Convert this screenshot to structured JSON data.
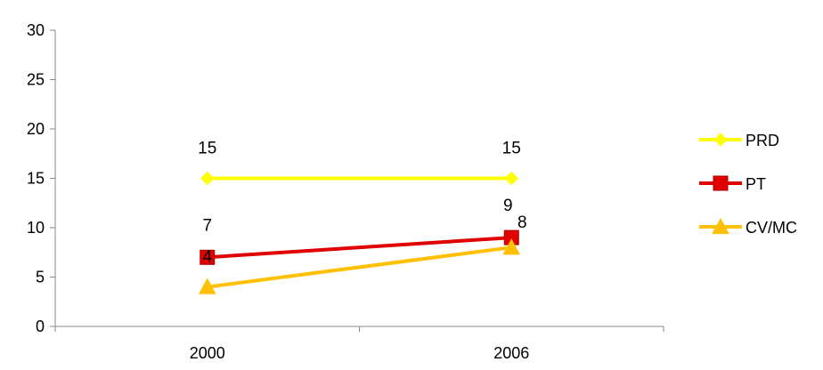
{
  "chart_data": {
    "type": "line",
    "title": "",
    "xlabel": "",
    "ylabel": "",
    "categories": [
      "2000",
      "2006"
    ],
    "ylim": [
      0,
      30
    ],
    "yticks": [
      0,
      5,
      10,
      15,
      20,
      25,
      30
    ],
    "grid": false,
    "legend_position": "right",
    "series": [
      {
        "name": "PRD",
        "values": [
          15,
          15
        ],
        "color": "#FFFF00",
        "marker": "diamond"
      },
      {
        "name": "PT",
        "values": [
          7,
          9
        ],
        "color": "#E00000",
        "marker": "square"
      },
      {
        "name": "CV/MC",
        "values": [
          4,
          8
        ],
        "color": "#FFC000",
        "marker": "triangle"
      }
    ],
    "data_labels": [
      [
        "15",
        "15"
      ],
      [
        "7",
        "9"
      ],
      [
        "4",
        "8"
      ]
    ]
  }
}
